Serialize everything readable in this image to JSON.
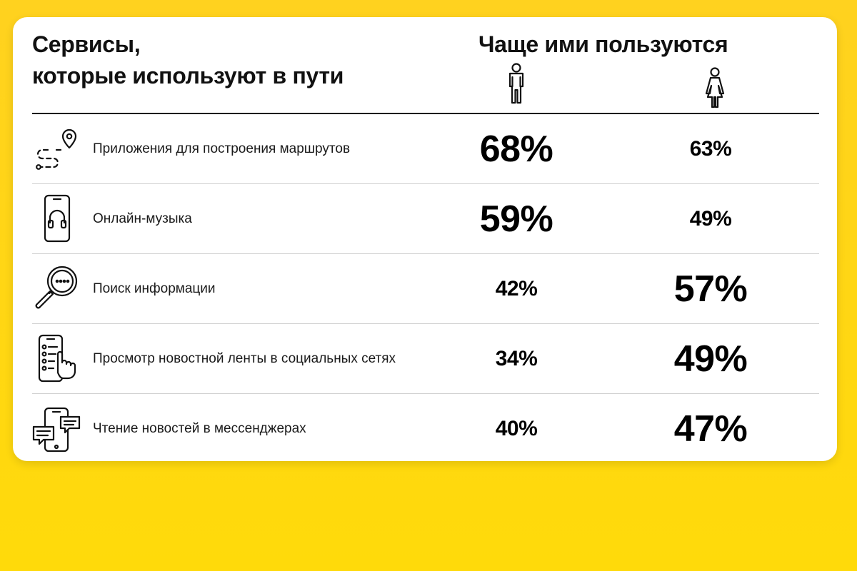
{
  "title": {
    "line1": "Сервисы,",
    "line2": "которые используют в пути"
  },
  "column_header": "Чаще ими пользуются",
  "columns": [
    {
      "icon": "male-figure-icon"
    },
    {
      "icon": "female-figure-icon"
    }
  ],
  "rows": [
    {
      "icon": "route-pin-icon",
      "label": "Приложения для построения маршрутов",
      "men": "68%",
      "women": "63%",
      "men_emphasis": "big",
      "women_emphasis": "small"
    },
    {
      "icon": "phone-headphones-icon",
      "label": "Онлайн-музыка",
      "men": "59%",
      "women": "49%",
      "men_emphasis": "big",
      "women_emphasis": "small"
    },
    {
      "icon": "magnifier-icon",
      "label": "Поиск информации",
      "men": "42%",
      "women": "57%",
      "men_emphasis": "small",
      "women_emphasis": "big"
    },
    {
      "icon": "phone-feed-icon",
      "label": "Просмотр новостной ленты в социальных сетях",
      "men": "34%",
      "women": "49%",
      "men_emphasis": "small",
      "women_emphasis": "big"
    },
    {
      "icon": "phone-chat-icon",
      "label": "Чтение новостей в мессенджерах",
      "men": "40%",
      "women": "47%",
      "men_emphasis": "small",
      "women_emphasis": "big"
    }
  ],
  "colors": {
    "background": "#ffd21f",
    "card": "#ffffff",
    "text": "#111111"
  }
}
